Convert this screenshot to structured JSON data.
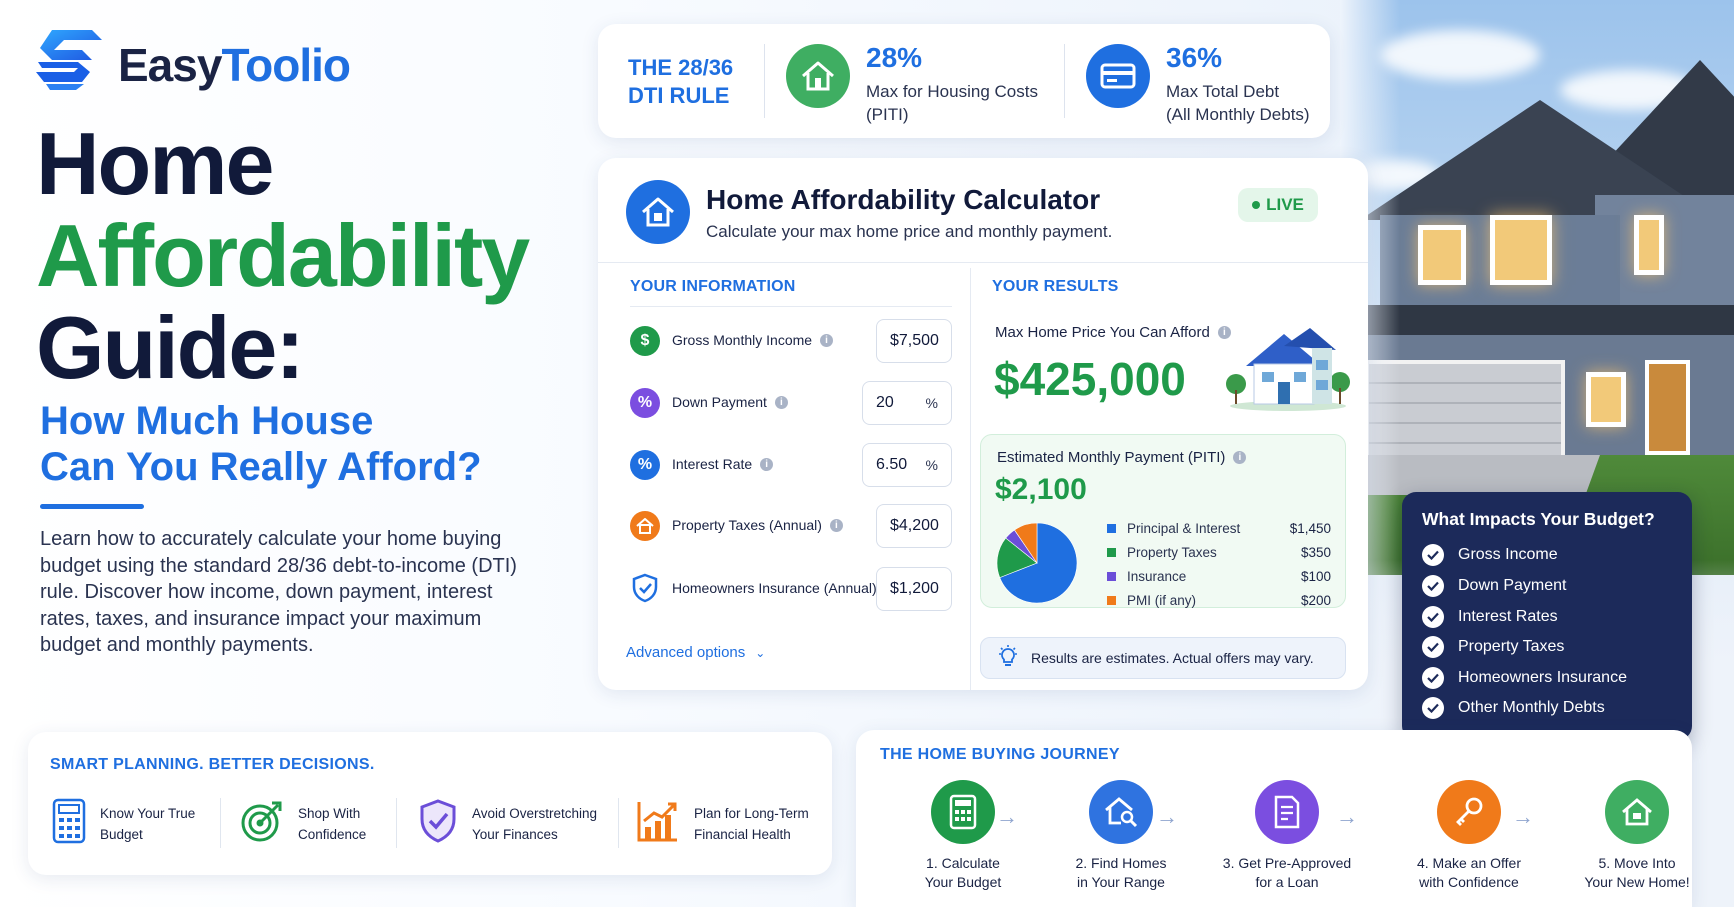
{
  "brand": {
    "name_part1": "Easy",
    "name_part2": "Toolio"
  },
  "hero": {
    "line1": "Home",
    "line2": "Affordability",
    "line3": "Guide:",
    "subtitle_line1": "How Much House",
    "subtitle_line2": "Can You Really Afford?",
    "description": "Learn how to accurately calculate your home buying budget using the standard 28/36 debt-to-income (DTI) rule. Discover how income, down payment, interest rates, taxes, and insurance impact your maximum budget and monthly payments."
  },
  "dti": {
    "rule_line1": "THE 28/36",
    "rule_line2": "DTI RULE",
    "housing_pct": "28%",
    "housing_label_line1": "Max for Housing Costs",
    "housing_label_line2": "(PITI)",
    "debt_pct": "36%",
    "debt_label_line1": "Max Total Debt",
    "debt_label_line2": "(All Monthly Debts)",
    "colors": {
      "housing": "#3fae62",
      "debt": "#1f6fe0"
    }
  },
  "calculator": {
    "title": "Home Affordability Calculator",
    "subtitle": "Calculate your max home price and monthly payment.",
    "live_label": "LIVE",
    "info_title": "YOUR INFORMATION",
    "results_title": "YOUR RESULTS",
    "fields": [
      {
        "label": "Gross Monthly Income",
        "value": "$7,500",
        "suffix": "",
        "icon": "dollar-icon",
        "color": "#1f9a4a"
      },
      {
        "label": "Down Payment",
        "value": "20",
        "suffix": "%",
        "icon": "percent-icon",
        "color": "#7b4ee0"
      },
      {
        "label": "Interest Rate",
        "value": "6.50",
        "suffix": "%",
        "icon": "percent-icon",
        "color": "#1f6fe0"
      },
      {
        "label": "Property Taxes (Annual)",
        "value": "$4,200",
        "suffix": "",
        "icon": "house-icon",
        "color": "#f07a1a"
      },
      {
        "label": "Homeowners Insurance (Annual)",
        "value": "$1,200",
        "suffix": "",
        "icon": "shield-icon",
        "color": "#1f6fe0"
      }
    ],
    "advanced_label": "Advanced options",
    "max_price_label": "Max Home Price You Can Afford",
    "max_price_value": "$425,000",
    "payment_label": "Estimated Monthly Payment (PITI)",
    "payment_value": "$2,100",
    "breakdown": [
      {
        "label": "Principal & Interest",
        "value": "$1,450",
        "amount": 1450,
        "color": "#1f6fe0"
      },
      {
        "label": "Property Taxes",
        "value": "$350",
        "amount": 350,
        "color": "#1f9a4a"
      },
      {
        "label": "Insurance",
        "value": "$100",
        "amount": 100,
        "color": "#6b4ed8"
      },
      {
        "label": "PMI (if any)",
        "value": "$200",
        "amount": 200,
        "color": "#f07a1a"
      }
    ],
    "note": "Results are estimates. Actual offers may vary."
  },
  "impacts": {
    "title": "What Impacts Your Budget?",
    "items": [
      "Gross Income",
      "Down Payment",
      "Interest Rates",
      "Property Taxes",
      "Homeowners Insurance",
      "Other Monthly Debts"
    ]
  },
  "smart": {
    "title": "SMART PLANNING. BETTER DECISIONS.",
    "items": [
      {
        "line1": "Know Your True",
        "line2": "Budget",
        "icon": "calculator-icon"
      },
      {
        "line1": "Shop With",
        "line2": "Confidence",
        "icon": "target-icon"
      },
      {
        "line1": "Avoid Overstretching",
        "line2": "Your Finances",
        "icon": "shield-check-icon"
      },
      {
        "line1": "Plan for Long-Term",
        "line2": "Financial Health",
        "icon": "growth-chart-icon"
      }
    ]
  },
  "journey": {
    "title": "THE HOME BUYING JOURNEY",
    "steps": [
      {
        "line1": "1. Calculate",
        "line2": "Your Budget",
        "color": "#1f9a4a",
        "icon": "calculator-icon"
      },
      {
        "line1": "2. Find Homes",
        "line2": "in Your Range",
        "color": "#2f73e0",
        "icon": "house-search-icon"
      },
      {
        "line1": "3. Get Pre-Approved",
        "line2": "for a Loan",
        "color": "#7b4ee0",
        "icon": "document-icon"
      },
      {
        "line1": "4. Make an Offer",
        "line2": "with Confidence",
        "color": "#f07a1a",
        "icon": "keys-icon"
      },
      {
        "line1": "5. Move Into",
        "line2": "Your New Home!",
        "color": "#3fae62",
        "icon": "home-icon"
      }
    ]
  }
}
